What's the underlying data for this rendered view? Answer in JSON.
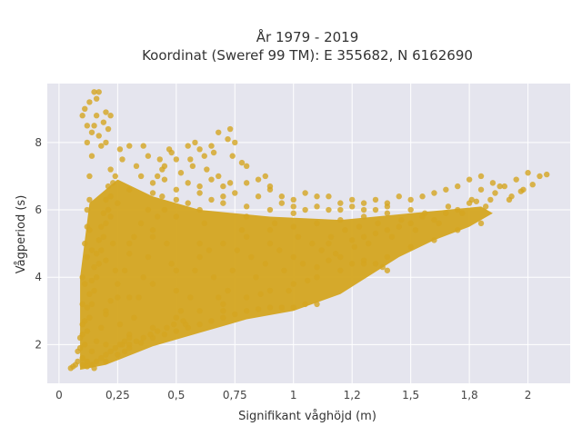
{
  "chart_data": {
    "type": "scatter",
    "title_line1": "År 1979 - 2019",
    "title_line2": "Koordinat (Sweref 99 TM): E 355682, N 6162690",
    "xlabel": "Signifikant våghöjd (m)",
    "ylabel": "Vågperiod (s)",
    "xlim": [
      -0.05,
      2.18
    ],
    "ylim": [
      0.85,
      9.75
    ],
    "x_ticks": [
      0,
      0.25,
      0.5,
      0.75,
      1,
      1.25,
      1.5,
      1.75,
      2
    ],
    "x_tick_labels": [
      "0",
      "0,25",
      "0,5",
      "0,75",
      "1",
      "1,2",
      "1,5",
      "1,8",
      "2"
    ],
    "y_ticks": [
      2,
      4,
      6,
      8
    ],
    "y_tick_labels": [
      "2",
      "4",
      "6",
      "8"
    ],
    "grid": true,
    "marker_color": "#d4a520",
    "plot_background": "#e5e5ee",
    "points": [
      [
        0.05,
        1.3
      ],
      [
        0.07,
        1.4
      ],
      [
        0.08,
        1.8
      ],
      [
        0.09,
        2.2
      ],
      [
        0.1,
        2.6
      ],
      [
        0.1,
        3.2
      ],
      [
        0.11,
        3.8
      ],
      [
        0.12,
        4.6
      ],
      [
        0.12,
        5.5
      ],
      [
        0.13,
        6.3
      ],
      [
        0.13,
        7.0
      ],
      [
        0.14,
        7.6
      ],
      [
        0.14,
        8.3
      ],
      [
        0.15,
        9.5
      ],
      [
        0.17,
        9.5
      ],
      [
        0.16,
        8.8
      ],
      [
        0.2,
        8.9
      ],
      [
        0.22,
        8.8
      ],
      [
        0.12,
        8.5
      ],
      [
        0.18,
        7.9
      ],
      [
        0.12,
        1.5
      ],
      [
        0.14,
        1.8
      ],
      [
        0.16,
        2.1
      ],
      [
        0.18,
        2.5
      ],
      [
        0.2,
        2.9
      ],
      [
        0.22,
        3.3
      ],
      [
        0.25,
        3.8
      ],
      [
        0.28,
        4.2
      ],
      [
        0.3,
        4.7
      ],
      [
        0.32,
        5.2
      ],
      [
        0.35,
        5.6
      ],
      [
        0.38,
        6.0
      ],
      [
        0.4,
        6.5
      ],
      [
        0.42,
        7.0
      ],
      [
        0.45,
        7.3
      ],
      [
        0.48,
        7.7
      ],
      [
        0.5,
        7.5
      ],
      [
        0.55,
        7.9
      ],
      [
        0.58,
        8.0
      ],
      [
        0.62,
        7.6
      ],
      [
        0.65,
        7.9
      ],
      [
        0.68,
        8.3
      ],
      [
        0.72,
        8.1
      ],
      [
        0.74,
        7.6
      ],
      [
        0.78,
        7.4
      ],
      [
        0.8,
        7.3
      ],
      [
        0.85,
        6.9
      ],
      [
        0.88,
        7.0
      ],
      [
        0.9,
        6.6
      ],
      [
        0.95,
        6.4
      ],
      [
        1.0,
        6.3
      ],
      [
        1.05,
        6.5
      ],
      [
        1.1,
        6.4
      ],
      [
        1.15,
        6.4
      ],
      [
        1.2,
        6.2
      ],
      [
        1.25,
        6.3
      ],
      [
        1.3,
        6.2
      ],
      [
        1.35,
        6.3
      ],
      [
        1.4,
        6.2
      ],
      [
        1.45,
        6.4
      ],
      [
        1.5,
        6.3
      ],
      [
        1.55,
        6.4
      ],
      [
        1.6,
        6.5
      ],
      [
        1.65,
        6.6
      ],
      [
        1.7,
        6.7
      ],
      [
        1.75,
        6.9
      ],
      [
        1.8,
        7.0
      ],
      [
        1.85,
        6.8
      ],
      [
        1.9,
        6.7
      ],
      [
        1.95,
        6.9
      ],
      [
        2.0,
        7.1
      ],
      [
        2.05,
        7.0
      ],
      [
        2.08,
        7.05
      ],
      [
        2.02,
        6.75
      ],
      [
        1.97,
        6.55
      ],
      [
        1.93,
        6.4
      ],
      [
        1.88,
        6.7
      ],
      [
        1.84,
        6.3
      ],
      [
        1.8,
        6.6
      ],
      [
        1.78,
        6.25
      ],
      [
        0.15,
        1.3
      ],
      [
        0.2,
        1.5
      ],
      [
        0.25,
        1.7
      ],
      [
        0.3,
        1.9
      ],
      [
        0.35,
        2.05
      ],
      [
        0.4,
        2.2
      ],
      [
        0.45,
        2.3
      ],
      [
        0.5,
        2.4
      ],
      [
        0.55,
        2.5
      ],
      [
        0.6,
        2.6
      ],
      [
        0.65,
        2.7
      ],
      [
        0.7,
        2.8
      ],
      [
        0.75,
        2.9
      ],
      [
        0.8,
        3.0
      ],
      [
        0.85,
        3.05
      ],
      [
        0.9,
        3.1
      ],
      [
        0.95,
        3.1
      ],
      [
        1.0,
        3.1
      ],
      [
        1.05,
        3.2
      ],
      [
        1.1,
        3.2
      ],
      [
        1.1,
        4.3
      ],
      [
        1.15,
        4.5
      ],
      [
        1.2,
        4.6
      ],
      [
        1.25,
        4.4
      ],
      [
        1.3,
        4.5
      ],
      [
        1.35,
        4.4
      ],
      [
        1.38,
        4.3
      ],
      [
        1.4,
        4.2
      ],
      [
        1.3,
        5.2
      ],
      [
        1.4,
        5.4
      ],
      [
        1.5,
        5.6
      ],
      [
        1.6,
        5.7
      ],
      [
        1.7,
        6.0
      ],
      [
        1.75,
        6.2
      ],
      [
        1.65,
        5.9
      ],
      [
        1.55,
        5.8
      ],
      [
        1.45,
        5.5
      ],
      [
        1.35,
        5.3
      ],
      [
        1.25,
        5.1
      ],
      [
        1.15,
        5.0
      ],
      [
        0.2,
        2.0
      ],
      [
        0.3,
        2.3
      ],
      [
        0.4,
        2.5
      ],
      [
        0.5,
        2.8
      ],
      [
        0.6,
        3.0
      ],
      [
        0.7,
        3.2
      ],
      [
        0.8,
        3.4
      ],
      [
        0.9,
        3.6
      ],
      [
        1.0,
        3.8
      ],
      [
        1.1,
        4.0
      ],
      [
        1.2,
        4.2
      ],
      [
        1.3,
        4.4
      ],
      [
        1.4,
        4.6
      ],
      [
        1.5,
        4.9
      ],
      [
        1.6,
        5.1
      ],
      [
        1.7,
        5.4
      ],
      [
        1.8,
        5.6
      ],
      [
        0.2,
        3.0
      ],
      [
        0.3,
        3.4
      ],
      [
        0.4,
        3.8
      ],
      [
        0.5,
        4.2
      ],
      [
        0.6,
        4.6
      ],
      [
        0.7,
        5.0
      ],
      [
        0.8,
        5.2
      ],
      [
        0.9,
        5.4
      ],
      [
        1.0,
        5.5
      ],
      [
        1.1,
        5.6
      ],
      [
        1.2,
        5.7
      ],
      [
        1.3,
        5.8
      ],
      [
        1.4,
        5.9
      ],
      [
        1.5,
        6.0
      ],
      [
        0.2,
        4.5
      ],
      [
        0.3,
        5.0
      ],
      [
        0.4,
        5.4
      ],
      [
        0.5,
        5.8
      ],
      [
        0.6,
        6.0
      ],
      [
        0.7,
        6.2
      ],
      [
        0.8,
        6.1
      ],
      [
        0.9,
        6.0
      ],
      [
        1.0,
        5.9
      ],
      [
        0.25,
        6.2
      ],
      [
        0.3,
        6.6
      ],
      [
        0.35,
        7.0
      ],
      [
        0.4,
        6.8
      ],
      [
        0.45,
        6.9
      ],
      [
        0.5,
        6.3
      ],
      [
        0.55,
        6.8
      ],
      [
        0.6,
        6.5
      ],
      [
        0.65,
        6.9
      ],
      [
        0.7,
        6.4
      ],
      [
        0.22,
        7.2
      ],
      [
        0.27,
        7.5
      ],
      [
        0.33,
        7.3
      ],
      [
        0.38,
        7.6
      ],
      [
        0.44,
        7.2
      ],
      [
        0.52,
        7.1
      ],
      [
        0.57,
        7.3
      ],
      [
        0.63,
        7.2
      ],
      [
        0.68,
        7.0
      ],
      [
        0.73,
        6.8
      ],
      [
        0.1,
        1.6
      ],
      [
        0.11,
        2.0
      ],
      [
        0.12,
        2.4
      ],
      [
        0.13,
        2.8
      ],
      [
        0.14,
        3.2
      ],
      [
        0.15,
        3.6
      ],
      [
        0.16,
        4.0
      ],
      [
        0.17,
        4.4
      ],
      [
        0.18,
        4.8
      ],
      [
        0.19,
        5.2
      ],
      [
        0.2,
        5.6
      ],
      [
        0.21,
        6.0
      ],
      [
        0.22,
        6.4
      ],
      [
        0.23,
        6.8
      ],
      [
        0.24,
        7.0
      ],
      [
        0.1,
        4.0
      ],
      [
        0.11,
        5.0
      ],
      [
        0.12,
        6.0
      ],
      [
        0.13,
        5.4
      ],
      [
        0.14,
        4.8
      ],
      [
        0.09,
        1.9
      ],
      [
        0.1,
        2.3
      ],
      [
        0.11,
        2.7
      ],
      [
        0.12,
        3.1
      ],
      [
        0.13,
        3.5
      ],
      [
        0.14,
        3.9
      ],
      [
        0.15,
        4.3
      ],
      [
        0.16,
        4.7
      ],
      [
        0.17,
        5.1
      ],
      [
        0.18,
        5.5
      ],
      [
        0.19,
        5.9
      ],
      [
        0.2,
        6.3
      ],
      [
        0.21,
        6.7
      ],
      [
        0.22,
        5.8
      ],
      [
        0.23,
        5.0
      ],
      [
        0.24,
        4.2
      ],
      [
        0.25,
        3.4
      ],
      [
        0.26,
        2.6
      ],
      [
        0.27,
        2.0
      ],
      [
        0.28,
        1.8
      ],
      [
        0.3,
        2.2
      ],
      [
        0.32,
        2.8
      ],
      [
        0.34,
        3.4
      ],
      [
        0.36,
        4.0
      ],
      [
        0.38,
        4.6
      ],
      [
        0.4,
        5.2
      ],
      [
        0.42,
        5.8
      ],
      [
        0.44,
        6.4
      ],
      [
        0.46,
        5.0
      ],
      [
        0.48,
        4.4
      ],
      [
        0.5,
        3.6
      ],
      [
        0.52,
        3.0
      ],
      [
        0.54,
        2.6
      ],
      [
        0.56,
        3.4
      ],
      [
        0.58,
        4.2
      ],
      [
        0.6,
        5.0
      ],
      [
        0.62,
        5.6
      ],
      [
        0.64,
        4.8
      ],
      [
        0.66,
        4.0
      ],
      [
        0.68,
        3.4
      ],
      [
        0.7,
        3.0
      ],
      [
        0.72,
        3.6
      ],
      [
        0.74,
        4.2
      ],
      [
        0.76,
        4.8
      ],
      [
        0.78,
        5.4
      ],
      [
        0.8,
        5.8
      ],
      [
        0.82,
        4.6
      ],
      [
        0.84,
        4.0
      ],
      [
        0.86,
        3.5
      ],
      [
        0.88,
        4.4
      ],
      [
        0.9,
        5.0
      ],
      [
        0.92,
        5.6
      ],
      [
        0.94,
        4.8
      ],
      [
        0.96,
        4.2
      ],
      [
        0.98,
        3.6
      ],
      [
        1.0,
        4.6
      ],
      [
        1.02,
        5.2
      ],
      [
        1.04,
        4.4
      ],
      [
        1.06,
        3.9
      ],
      [
        1.08,
        5.0
      ],
      [
        1.12,
        4.8
      ],
      [
        1.16,
        5.2
      ],
      [
        1.18,
        4.7
      ],
      [
        1.22,
        5.4
      ],
      [
        1.26,
        4.9
      ],
      [
        1.28,
        5.5
      ],
      [
        1.32,
        5.0
      ],
      [
        1.36,
        5.6
      ],
      [
        1.42,
        5.2
      ],
      [
        1.46,
        5.7
      ],
      [
        1.52,
        5.4
      ],
      [
        1.56,
        5.9
      ],
      [
        1.62,
        5.6
      ],
      [
        1.66,
        6.1
      ],
      [
        1.72,
        5.9
      ],
      [
        1.76,
        6.3
      ],
      [
        1.82,
        6.1
      ],
      [
        1.86,
        6.5
      ],
      [
        1.92,
        6.3
      ],
      [
        1.98,
        6.6
      ],
      [
        0.75,
        8.0
      ],
      [
        0.73,
        8.4
      ],
      [
        0.66,
        7.7
      ],
      [
        0.6,
        7.8
      ],
      [
        0.56,
        7.5
      ],
      [
        0.47,
        7.8
      ],
      [
        0.43,
        7.5
      ],
      [
        0.36,
        7.9
      ],
      [
        0.3,
        7.9
      ],
      [
        0.26,
        7.8
      ],
      [
        0.2,
        8.0
      ],
      [
        0.17,
        8.2
      ],
      [
        0.15,
        8.5
      ],
      [
        0.19,
        8.6
      ],
      [
        0.21,
        8.4
      ],
      [
        0.1,
        8.8
      ],
      [
        0.11,
        9.0
      ],
      [
        0.13,
        9.2
      ],
      [
        0.16,
        9.3
      ],
      [
        0.12,
        8.0
      ],
      [
        0.45,
        6.0
      ],
      [
        0.5,
        6.6
      ],
      [
        0.55,
        6.2
      ],
      [
        0.6,
        6.7
      ],
      [
        0.65,
        6.3
      ],
      [
        0.7,
        6.7
      ],
      [
        0.75,
        6.5
      ],
      [
        0.8,
        6.8
      ],
      [
        0.85,
        6.4
      ],
      [
        0.9,
        6.7
      ],
      [
        0.95,
        6.2
      ],
      [
        1.0,
        6.1
      ],
      [
        1.05,
        6.0
      ],
      [
        1.1,
        6.1
      ],
      [
        1.15,
        6.0
      ],
      [
        1.2,
        6.0
      ],
      [
        1.25,
        6.1
      ],
      [
        1.3,
        6.0
      ],
      [
        1.35,
        6.0
      ],
      [
        1.4,
        6.1
      ],
      [
        0.06,
        1.35
      ],
      [
        0.08,
        1.5
      ],
      [
        0.1,
        1.4
      ],
      [
        0.12,
        1.35
      ],
      [
        0.14,
        1.4
      ],
      [
        0.16,
        1.5
      ],
      [
        0.18,
        1.6
      ],
      [
        0.2,
        1.7
      ],
      [
        0.22,
        1.8
      ],
      [
        0.24,
        1.9
      ],
      [
        0.26,
        2.0
      ],
      [
        0.28,
        2.1
      ],
      [
        0.3,
        2.0
      ],
      [
        0.33,
        2.1
      ],
      [
        0.36,
        2.2
      ],
      [
        0.39,
        2.3
      ],
      [
        0.42,
        2.4
      ],
      [
        0.46,
        2.5
      ],
      [
        0.49,
        2.6
      ],
      [
        0.53,
        2.7
      ]
    ]
  }
}
